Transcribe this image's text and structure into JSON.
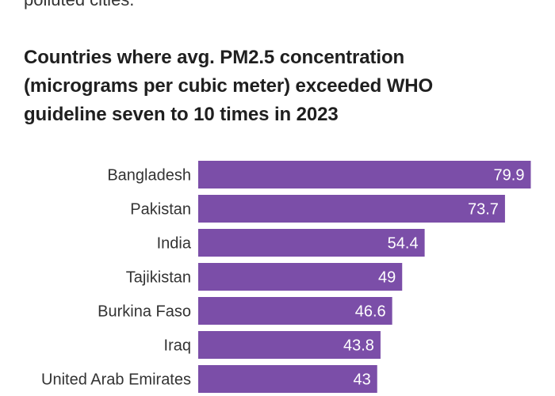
{
  "intro": {
    "fragment": "polluted cities."
  },
  "colors": {
    "bar": "#7b4ea8",
    "label": "#333333",
    "value_text": "#ffffff"
  },
  "chart_data": {
    "type": "bar",
    "orientation": "horizontal",
    "title": "Countries where avg. PM2.5 concentration\n(micrograms per cubic meter) exceeded WHO\nguideline seven to 10 times in 2023",
    "xlabel": "",
    "ylabel": "",
    "xlim": [
      0,
      80
    ],
    "grid": false,
    "categories": [
      "Bangladesh",
      "Pakistan",
      "India",
      "Tajikistan",
      "Burkina Faso",
      "Iraq",
      "United Arab Emirates"
    ],
    "values": [
      79.9,
      73.7,
      54.4,
      49,
      46.6,
      43.8,
      43
    ],
    "value_labels": [
      "79.9",
      "73.7",
      "54.4",
      "49",
      "46.6",
      "43.8",
      "43"
    ]
  }
}
